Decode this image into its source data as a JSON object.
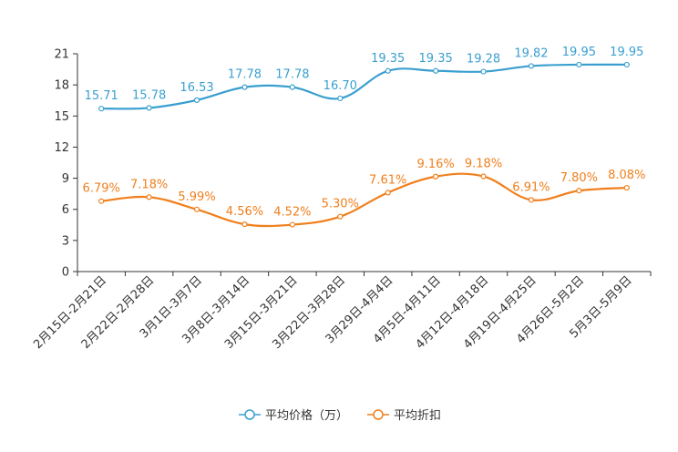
{
  "chart_data": {
    "type": "line",
    "categories": [
      "2月15日-2月21日",
      "2月22日-2月28日",
      "3月1日-3月7日",
      "3月8日-3月14日",
      "3月15日-3月21日",
      "3月22日-3月28日",
      "3月29日-4月4日",
      "4月5日-4月11日",
      "4月12日-4月18日",
      "4月19日-4月25日",
      "4月26日-5月2日",
      "5月3日-5月9日"
    ],
    "ylim": [
      0,
      21
    ],
    "yticks": [
      0,
      3,
      6,
      9,
      12,
      15,
      18,
      21
    ],
    "series": [
      {
        "name": "平均价格（万）",
        "color": "#3a9fd0",
        "values": [
          15.71,
          15.78,
          16.53,
          17.78,
          17.78,
          16.7,
          19.35,
          19.35,
          19.28,
          19.82,
          19.95,
          19.95
        ],
        "labels": [
          "15.71",
          "15.78",
          "16.53",
          "17.78",
          "17.78",
          "16.70",
          "19.35",
          "19.35",
          "19.28",
          "19.82",
          "19.95",
          "19.95"
        ]
      },
      {
        "name": "平均折扣",
        "color": "#f07f1c",
        "values": [
          6.79,
          7.18,
          5.99,
          4.56,
          4.52,
          5.3,
          7.61,
          9.16,
          9.18,
          6.91,
          7.8,
          8.08
        ],
        "labels": [
          "6.79%",
          "7.18%",
          "5.99%",
          "4.56%",
          "4.52%",
          "5.30%",
          "7.61%",
          "9.16%",
          "9.18%",
          "6.91%",
          "7.80%",
          "8.08%"
        ]
      }
    ],
    "grid": false,
    "legend": "bottom-center"
  }
}
